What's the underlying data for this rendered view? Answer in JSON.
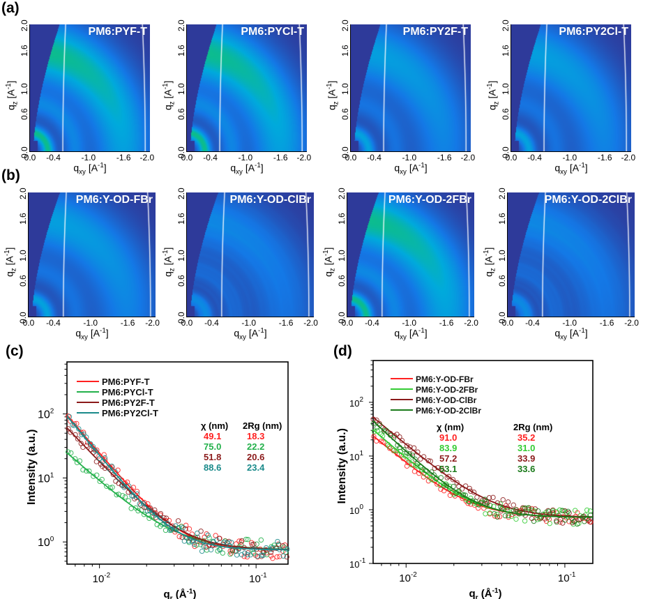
{
  "panel_labels": {
    "a": "(a)",
    "b": "(b)",
    "c": "(c)",
    "d": "(d)"
  },
  "maps": {
    "x_ticks": [
      "0.0",
      "-0.4",
      "-1.0",
      "-1.6",
      "-2.0"
    ],
    "y_ticks": [
      "0.0",
      "0.6",
      "1.0",
      "1.6",
      "2.0"
    ],
    "xlabel_main": "q",
    "xlabel_sub": "xy",
    "xlabel_unit": " [A",
    "xlabel_sup": "-1",
    "xlabel_end": "]",
    "ylabel_main": "q",
    "ylabel_sub": "z",
    "ylabel_unit": " [A",
    "ylabel_sup": "-1",
    "ylabel_end": "]",
    "row_a": [
      {
        "title": "PM6:PYF-T",
        "intensity": "high"
      },
      {
        "title": "PM6:PYCl-T",
        "intensity": "high"
      },
      {
        "title": "PM6:PY2F-T",
        "intensity": "medium"
      },
      {
        "title": "PM6:PY2Cl-T",
        "intensity": "medium"
      }
    ],
    "row_b": [
      {
        "title": "PM6:Y-OD-FBr",
        "intensity": "medium"
      },
      {
        "title": "PM6:Y-OD-ClBr",
        "intensity": "low"
      },
      {
        "title": "PM6:Y-OD-2FBr",
        "intensity": "high"
      },
      {
        "title": "PM6:Y-OD-2ClBr",
        "intensity": "low"
      }
    ]
  },
  "colors": {
    "red": "#ff2020",
    "green": "#22b04a",
    "darkred": "#8b1a1a",
    "teal": "#1a8a8a",
    "lightgreen": "#33cc33",
    "darkgreen": "#1a7a1a",
    "map_bg": "#2e3a9a"
  },
  "chart_data": [
    {
      "id": "c",
      "type": "scatter",
      "xscale": "log",
      "yscale": "log",
      "xlabel": "q_r (Å^-1)",
      "ylabel": "Intensity (a.u.)",
      "xlim": [
        0.0062,
        0.16
      ],
      "ylim": [
        0.45,
        650
      ],
      "x_tick_labels": [
        "10^-2",
        "10^-1"
      ],
      "y_tick_labels": [
        "10^0",
        "10^1",
        "10^2"
      ],
      "legend_position": "top-left",
      "series": [
        {
          "name": "PM6:PYF-T",
          "color": "red",
          "A": 95,
          "slope": 2.9,
          "q0": 0.0062,
          "bg": 0.75,
          "chi_nm": "49.1",
          "rg2_nm": "18.3"
        },
        {
          "name": "PM6:PYCl-T",
          "color": "green",
          "A": 24,
          "slope": 2.2,
          "q0": 0.0062,
          "bg": 0.75,
          "chi_nm": "75.0",
          "rg2_nm": "22.2"
        },
        {
          "name": "PM6:PY2F-T",
          "color": "darkred",
          "A": 60,
          "slope": 2.6,
          "q0": 0.0062,
          "bg": 0.75,
          "chi_nm": "51.8",
          "rg2_nm": "20.6"
        },
        {
          "name": "PM6:PY2Cl-T",
          "color": "teal",
          "A": 92,
          "slope": 3.0,
          "q0": 0.0062,
          "bg": 0.75,
          "chi_nm": "88.6",
          "rg2_nm": "23.4"
        }
      ],
      "table_header": {
        "chi": "χ (nm)",
        "rg": "2Rg (nm)"
      }
    },
    {
      "id": "d",
      "type": "scatter",
      "xscale": "log",
      "yscale": "log",
      "xlabel": "q_r (Å^-1)",
      "ylabel": "Intensity (a.u.)",
      "xlim": [
        0.0062,
        0.15
      ],
      "ylim": [
        0.1,
        600
      ],
      "x_tick_labels": [
        "10^-2",
        "10^-1"
      ],
      "y_tick_labels": [
        "10^-1",
        "10^0",
        "10^1",
        "10^2"
      ],
      "legend_position": "top-left",
      "series": [
        {
          "name": "PM6:Y-OD-FBr",
          "color": "red",
          "A": 23,
          "slope": 2.5,
          "q0": 0.0062,
          "bg": 0.72,
          "chi_nm": "91.0",
          "rg2_nm": "35.2"
        },
        {
          "name": "PM6:Y-OD-2FBr",
          "color": "lightgreen",
          "A": 30,
          "slope": 2.6,
          "q0": 0.0062,
          "bg": 0.72,
          "chi_nm": "83.9",
          "rg2_nm": "31.0"
        },
        {
          "name": "PM6:Y-OD-ClBr",
          "color": "darkred",
          "A": 52,
          "slope": 2.5,
          "q0": 0.0062,
          "bg": 0.72,
          "chi_nm": "57.2",
          "rg2_nm": "33.9"
        },
        {
          "name": "PM6:Y-OD-2ClBr",
          "color": "darkgreen",
          "A": 44,
          "slope": 2.8,
          "q0": 0.0062,
          "bg": 0.72,
          "chi_nm": "53.1",
          "rg2_nm": "33.6"
        }
      ],
      "table_header": {
        "chi": "χ (nm)",
        "rg": "2Rg (nm)"
      }
    }
  ]
}
